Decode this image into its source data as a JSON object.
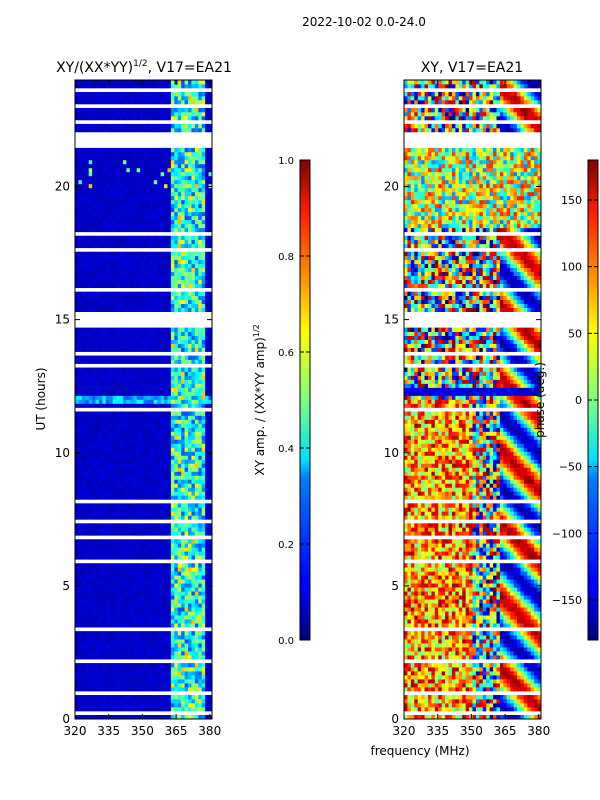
{
  "suptitle": "2022-10-02 0.0-24.0",
  "shared_xlabel": "frequency (MHz)",
  "chart_data": [
    {
      "type": "heatmap",
      "title_main": "XY/(XX*YY)",
      "title_sup": "1/2",
      "title_rest": ", V17=EA21",
      "xlabel": "",
      "ylabel": "UT (hours)",
      "xlim": [
        320,
        381
      ],
      "ylim": [
        0,
        24
      ],
      "xticks": [
        320,
        335,
        350,
        365,
        380
      ],
      "yticks": [
        0,
        5,
        10,
        15,
        20
      ],
      "colorbar": {
        "label_main": "XY amp. / (XX*YY amp)",
        "label_sup": "1/2",
        "range": [
          0.0,
          1.0
        ],
        "ticks": [
          "0.0",
          "0.2",
          "0.4",
          "0.6",
          "0.8",
          "1.0"
        ],
        "tick_values": [
          0.0,
          0.2,
          0.4,
          0.6,
          0.8,
          1.0
        ],
        "colormap": "jet"
      },
      "description_values": {
        "background_value": 0.05,
        "high_band_freq_range": [
          362,
          378
        ],
        "high_band_value_range": [
          0.2,
          0.55
        ]
      }
    },
    {
      "type": "heatmap",
      "title_main": "XY, V17=EA21",
      "title_sup": "",
      "title_rest": "",
      "xlabel": "frequency (MHz)",
      "ylabel": "",
      "xlim": [
        320,
        381
      ],
      "ylim": [
        0,
        24
      ],
      "xticks": [
        320,
        335,
        350,
        365,
        380
      ],
      "yticks": [
        0,
        5,
        10,
        15,
        20
      ],
      "colorbar": {
        "label_main": "phase (deg.)",
        "label_sup": "",
        "range": [
          -180,
          180
        ],
        "ticks": [
          "−150",
          "−100",
          "−50",
          "0",
          "50",
          "100",
          "150"
        ],
        "tick_values": [
          -150,
          -100,
          -50,
          0,
          50,
          100,
          150
        ],
        "colormap": "jet"
      }
    }
  ],
  "flagged_gaps_ut_hours": [
    [
      0.2,
      0.35
    ],
    [
      0.95,
      1.0
    ],
    [
      1.8,
      1.87
    ],
    [
      2.1,
      2.2
    ],
    [
      2.85,
      2.92
    ],
    [
      3.35,
      3.45
    ],
    [
      3.6,
      3.66
    ],
    [
      4.3,
      4.36
    ],
    [
      4.75,
      4.82
    ],
    [
      5.35,
      5.42
    ],
    [
      5.9,
      5.97
    ],
    [
      6.7,
      6.85
    ],
    [
      7.4,
      7.46
    ],
    [
      8.1,
      8.25
    ],
    [
      8.95,
      9.0
    ],
    [
      9.7,
      9.76
    ],
    [
      10.5,
      10.55
    ],
    [
      11.1,
      11.16
    ],
    [
      11.6,
      11.7
    ],
    [
      12.3,
      12.36
    ],
    [
      12.7,
      12.78
    ],
    [
      13.2,
      13.28
    ],
    [
      13.7,
      13.8
    ],
    [
      14.2,
      14.26
    ],
    [
      14.7,
      15.3
    ],
    [
      15.6,
      15.66
    ],
    [
      16.1,
      16.16
    ],
    [
      16.9,
      16.96
    ],
    [
      17.6,
      17.66
    ],
    [
      18.2,
      18.28
    ],
    [
      18.7,
      18.76
    ],
    [
      19.15,
      19.2
    ],
    [
      21.45,
      22.0
    ],
    [
      22.4,
      22.46
    ],
    [
      23.0,
      23.06
    ],
    [
      23.6,
      23.66
    ]
  ]
}
